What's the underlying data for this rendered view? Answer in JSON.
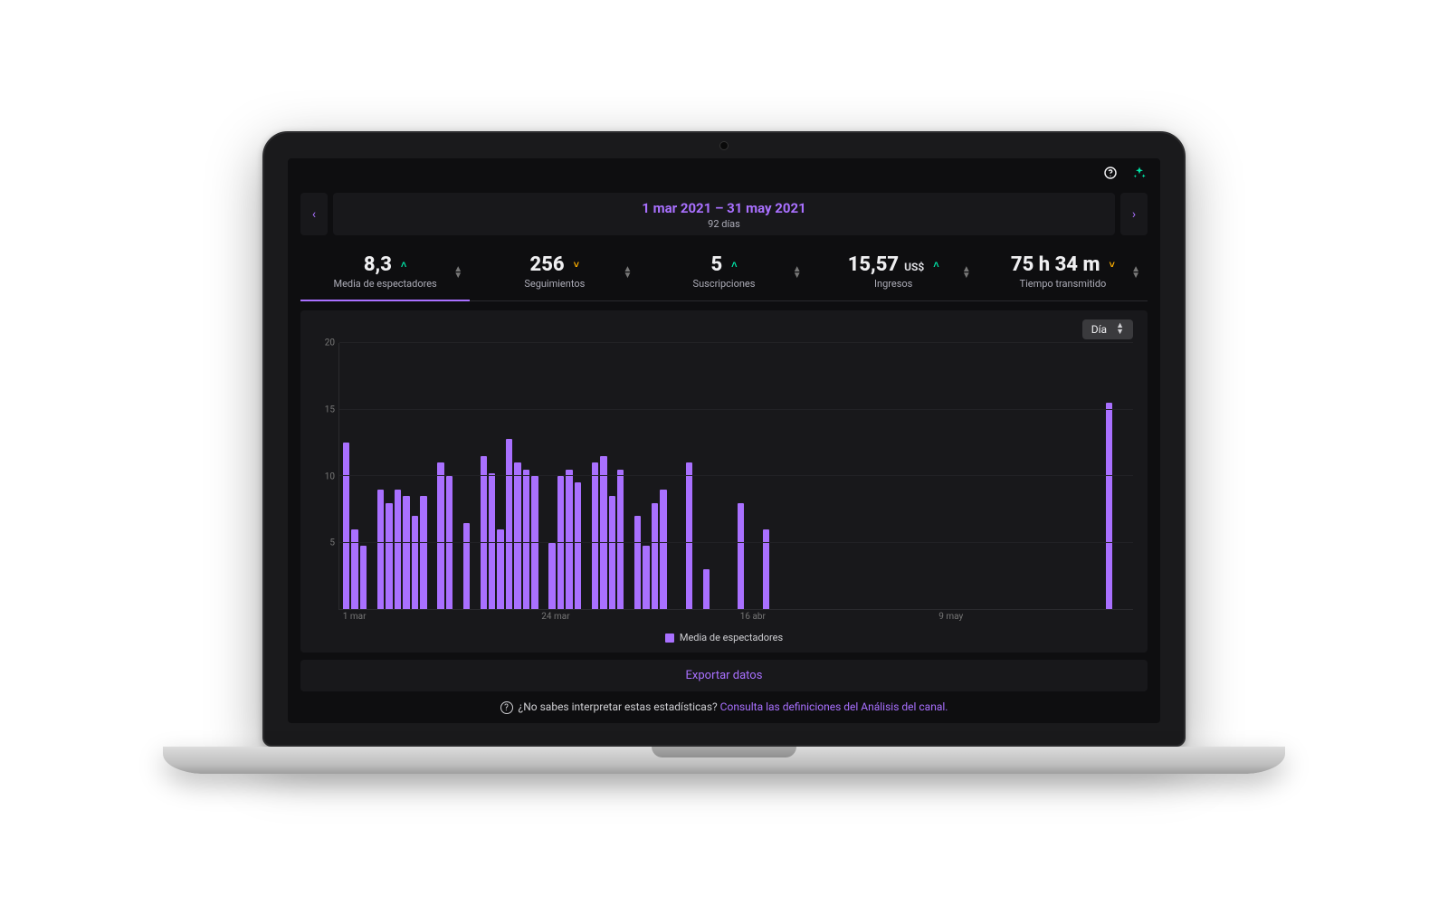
{
  "colors": {
    "page_background": "#ffffff",
    "screen_background": "#0e0e10",
    "panel_background": "#18181b",
    "accent": "#a970ff",
    "text_primary": "#efeff1",
    "text_muted": "#adadb8",
    "trend_up": "#00e6a8",
    "trend_down": "#ffb000",
    "grid": "#222226",
    "bar_color": "#a970ff"
  },
  "topbar": {
    "help_icon": "help-circle-icon",
    "reward_icon": "sparkle-icon"
  },
  "date_range": {
    "prev_icon": "‹",
    "next_icon": "›",
    "title": "1 mar 2021 – 31 may 2021",
    "subtitle": "92 días"
  },
  "metrics": [
    {
      "id": "avg-viewers",
      "value": "8,3",
      "suffix": "",
      "trend": "up",
      "label": "Media de espectadores",
      "active": true
    },
    {
      "id": "follows",
      "value": "256",
      "suffix": "",
      "trend": "down",
      "label": "Seguimientos",
      "active": false
    },
    {
      "id": "subs",
      "value": "5",
      "suffix": "",
      "trend": "up",
      "label": "Suscripciones",
      "active": false
    },
    {
      "id": "revenue",
      "value": "15,57",
      "suffix": "US$",
      "trend": "up",
      "label": "Ingresos",
      "active": false
    },
    {
      "id": "stream-time",
      "value": "75 h 34 m",
      "suffix": "",
      "trend": "down",
      "label": "Tiempo transmitido",
      "active": false
    }
  ],
  "granularity": {
    "label": "Día"
  },
  "chart": {
    "type": "bar",
    "ylim": [
      0,
      20
    ],
    "yticks": [
      5,
      10,
      15,
      20
    ],
    "xticks": [
      {
        "pos_pct": 1,
        "label": "1 mar"
      },
      {
        "pos_pct": 26,
        "label": "24 mar"
      },
      {
        "pos_pct": 51,
        "label": "16 abr"
      },
      {
        "pos_pct": 76,
        "label": "9 may"
      }
    ],
    "legend_label": "Media de espectadores",
    "values": [
      12.5,
      6.0,
      4.8,
      0,
      9.0,
      8.0,
      9.0,
      8.5,
      7.0,
      8.5,
      0,
      11.0,
      10.0,
      0,
      6.5,
      0,
      11.5,
      10.2,
      6.0,
      12.8,
      11.0,
      10.5,
      10.0,
      0,
      5.0,
      10.0,
      10.5,
      9.5,
      0,
      11.0,
      11.5,
      8.5,
      10.5,
      0,
      7.0,
      4.8,
      8.0,
      9.0,
      0,
      0,
      11.0,
      0,
      3.0,
      0,
      0,
      0,
      8.0,
      0,
      0,
      6.0,
      0,
      0,
      0,
      0,
      0,
      0,
      0,
      0,
      0,
      0,
      0,
      0,
      0,
      0,
      0,
      0,
      0,
      0,
      0,
      0,
      0,
      0,
      0,
      0,
      0,
      0,
      0,
      0,
      0,
      0,
      0,
      0,
      0,
      0,
      0,
      0,
      0,
      0,
      0,
      15.5,
      0,
      0
    ]
  },
  "export_label": "Exportar datos",
  "help": {
    "prefix": "¿No sabes interpretar estas estadísticas? ",
    "link": "Consulta las definiciones del Análisis del canal."
  }
}
